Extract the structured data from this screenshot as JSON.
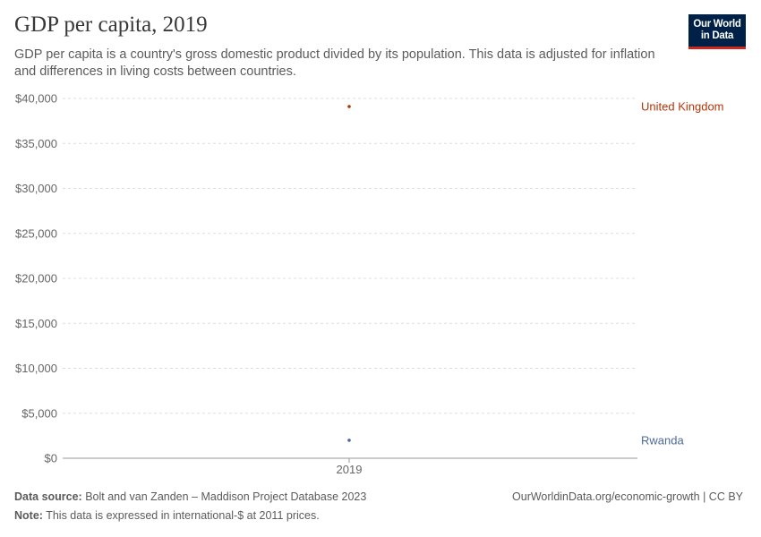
{
  "header": {
    "title": "GDP per capita, 2019",
    "subtitle": "GDP per capita is a country's gross domestic product divided by its population. This data is adjusted for inflation and differences in living costs between countries.",
    "logo_text": "Our World in Data"
  },
  "chart_data": {
    "type": "scatter",
    "x_ticks": [
      "2019"
    ],
    "y_ticks": [
      0,
      5000,
      10000,
      15000,
      20000,
      25000,
      30000,
      35000,
      40000
    ],
    "y_tick_labels": [
      "$0",
      "$5,000",
      "$10,000",
      "$15,000",
      "$20,000",
      "$25,000",
      "$30,000",
      "$35,000",
      "$40,000"
    ],
    "ylim": [
      0,
      40000
    ],
    "grid": "horizontal dashed",
    "series": [
      {
        "name": "United Kingdom",
        "x": "2019",
        "value": 39100,
        "color": "#b13507"
      },
      {
        "name": "Rwanda",
        "x": "2019",
        "value": 2000,
        "color": "#4c6a9c"
      }
    ]
  },
  "footer": {
    "source_label": "Data source:",
    "source": "Bolt and van Zanden – Maddison Project Database 2023",
    "note_label": "Note:",
    "note": "This data is expressed in international-$ at 2011 prices.",
    "link": "OurWorldinData.org/economic-growth",
    "license": "CC BY"
  }
}
